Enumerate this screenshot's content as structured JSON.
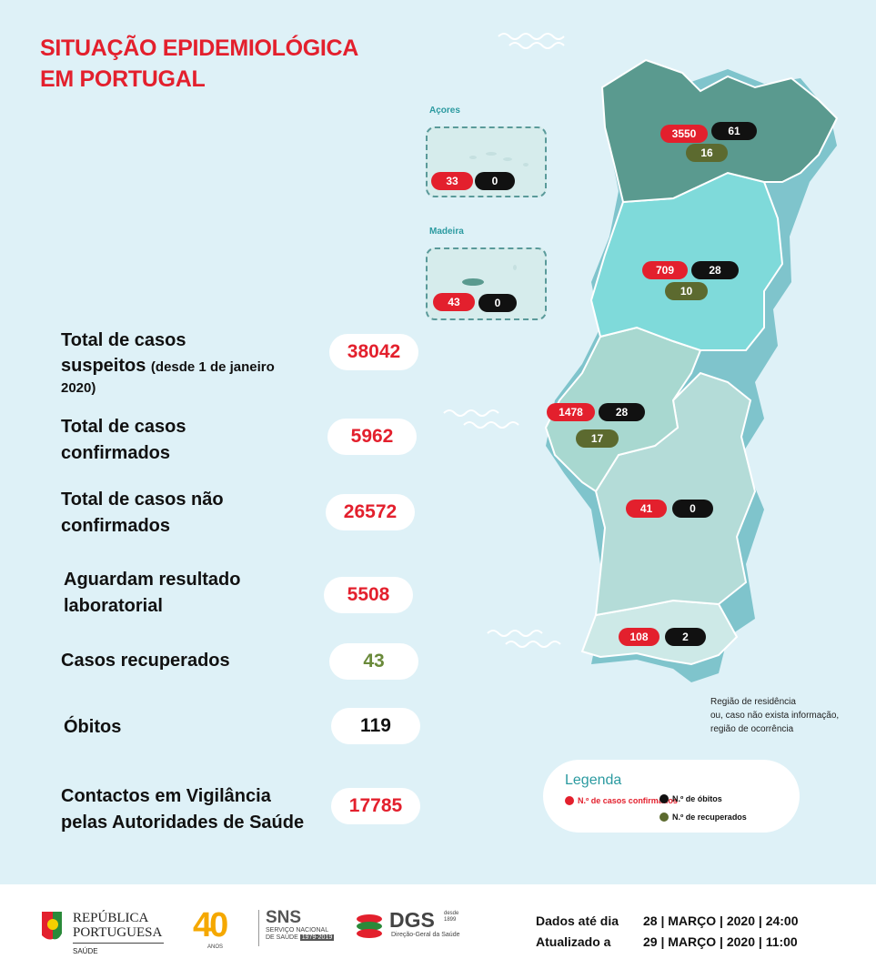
{
  "title_line1": "SITUAÇÃO EPIDEMIOLÓGICA",
  "title_line2": "EM PORTUGAL",
  "stats": {
    "suspeitos": {
      "label_line1": "Total de casos",
      "label_line2": "suspeitos",
      "label_small": "(desde 1 de janeiro",
      "label_line3": "2020)",
      "value": "38042"
    },
    "confirmados": {
      "label_line1": "Total de casos",
      "label_line2": "confirmados",
      "value": "5962"
    },
    "nao_confirmados": {
      "label_line1": "Total de casos não",
      "label_line2": "confirmados",
      "value": "26572"
    },
    "aguardam": {
      "label_line1": "Aguardam resultado",
      "label_line2": "laboratorial",
      "value": "5508"
    },
    "recuperados": {
      "label": "Casos recuperados",
      "value": "43"
    },
    "obitos": {
      "label": "Óbitos",
      "value": "119"
    },
    "contactos": {
      "label_line1": "Contactos em Vigilância",
      "label_line2": "pelas Autoridades de Saúde",
      "value": "17785"
    }
  },
  "islands": {
    "acores": {
      "name": "Açores",
      "confirmed": "33",
      "deaths": "0"
    },
    "madeira": {
      "name": "Madeira",
      "confirmed": "43",
      "deaths": "0"
    }
  },
  "regions": {
    "norte": {
      "confirmed": "3550",
      "deaths": "61",
      "recovered": "16",
      "color": "#5a9a8f"
    },
    "centro": {
      "confirmed": "709",
      "deaths": "28",
      "recovered": "10",
      "color": "#7fdada"
    },
    "lisboa": {
      "confirmed": "1478",
      "deaths": "28",
      "recovered": "17",
      "color": "#a8d8d0"
    },
    "alentejo": {
      "confirmed": "41",
      "deaths": "0",
      "color": "#b4dcd8"
    },
    "algarve": {
      "confirmed": "108",
      "deaths": "2",
      "color": "#cde9e7"
    }
  },
  "note_lines": [
    "Região de residência",
    "ou, caso não exista informação,",
    "região de ocorrência"
  ],
  "legend": {
    "title": "Legenda",
    "confirmed": "N.º de casos confirmados",
    "deaths": "N.º de óbitos",
    "recovered": "N.º de recuperados"
  },
  "colors": {
    "red": "#e3202d",
    "black": "#111111",
    "olive": "#5c6a2f",
    "teal": "#2b9aa0"
  },
  "footer": {
    "dados_label": "Dados até dia",
    "dados_value": "28 | MARÇO | 2020 | 24:00",
    "atualizado_label": "Atualizado a",
    "atualizado_value": "29 | MARÇO | 2020 | 11:00",
    "rp_line1": "REPÚBLICA",
    "rp_line2": "PORTUGUESA",
    "rp_sub": "SAÚDE",
    "forty": "40",
    "forty_sub": "ANOS",
    "sns": "SNS",
    "sns_line1": "SERVIÇO NACIONAL",
    "sns_line2": "DE SAÚDE",
    "sns_years": "1979-2019",
    "dgs": "DGS",
    "dgs_since1": "desde",
    "dgs_since2": "1899",
    "dgs_sub": "Direção-Geral da Saúde"
  }
}
